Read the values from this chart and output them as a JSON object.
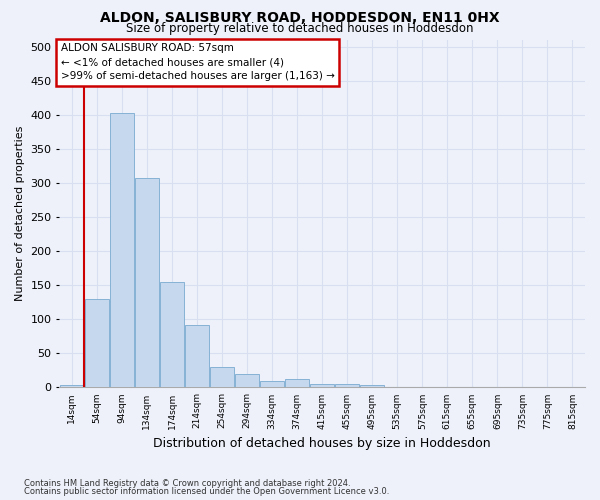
{
  "title": "ALDON, SALISBURY ROAD, HODDESDON, EN11 0HX",
  "subtitle": "Size of property relative to detached houses in Hoddesdon",
  "xlabel": "Distribution of detached houses by size in Hoddesdon",
  "ylabel": "Number of detached properties",
  "footnote1": "Contains HM Land Registry data © Crown copyright and database right 2024.",
  "footnote2": "Contains public sector information licensed under the Open Government Licence v3.0.",
  "bin_labels": [
    "14sqm",
    "54sqm",
    "94sqm",
    "134sqm",
    "174sqm",
    "214sqm",
    "254sqm",
    "294sqm",
    "334sqm",
    "374sqm",
    "415sqm",
    "455sqm",
    "495sqm",
    "535sqm",
    "575sqm",
    "615sqm",
    "655sqm",
    "695sqm",
    "735sqm",
    "775sqm",
    "815sqm"
  ],
  "bar_values": [
    4,
    130,
    403,
    308,
    155,
    92,
    30,
    20,
    10,
    13,
    5,
    5,
    3,
    0,
    0,
    1,
    0,
    0,
    0,
    0,
    0
  ],
  "bar_color": "#c5d8ee",
  "bar_edge_color": "#7aaad0",
  "highlight_color": "#cc0000",
  "annotation_title": "ALDON SALISBURY ROAD: 57sqm",
  "annotation_line2": "← <1% of detached houses are smaller (4)",
  "annotation_line3": ">99% of semi-detached houses are larger (1,163) →",
  "annotation_box_color": "#ffffff",
  "annotation_box_edge": "#cc0000",
  "grid_color": "#d8dff0",
  "bg_color": "#eef1fa",
  "ylim": [
    0,
    510
  ],
  "yticks": [
    0,
    50,
    100,
    150,
    200,
    250,
    300,
    350,
    400,
    450,
    500
  ]
}
